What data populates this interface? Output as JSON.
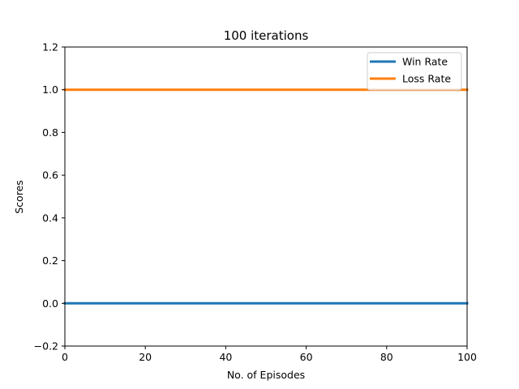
{
  "chart_data": {
    "type": "line",
    "title": "100 iterations",
    "xlabel": "No. of Episodes",
    "ylabel": "Scores",
    "xlim": [
      0,
      100
    ],
    "ylim": [
      -0.2,
      1.2
    ],
    "xticks": [
      0,
      20,
      40,
      60,
      80,
      100
    ],
    "yticks": [
      -0.2,
      0.0,
      0.2,
      0.4,
      0.6,
      0.8,
      1.0,
      1.2
    ],
    "xtick_labels": [
      "0",
      "20",
      "40",
      "60",
      "80",
      "100"
    ],
    "ytick_labels": [
      "−0.2",
      "0.0",
      "0.2",
      "0.4",
      "0.6",
      "0.8",
      "1.0",
      "1.2"
    ],
    "grid": false,
    "legend_position": "upper right",
    "series": [
      {
        "name": "Win Rate",
        "color": "#1f77b4",
        "x": [
          0,
          100
        ],
        "y": [
          0.0,
          0.0
        ]
      },
      {
        "name": "Loss Rate",
        "color": "#ff7f0e",
        "x": [
          0,
          100
        ],
        "y": [
          1.0,
          1.0
        ]
      }
    ]
  }
}
